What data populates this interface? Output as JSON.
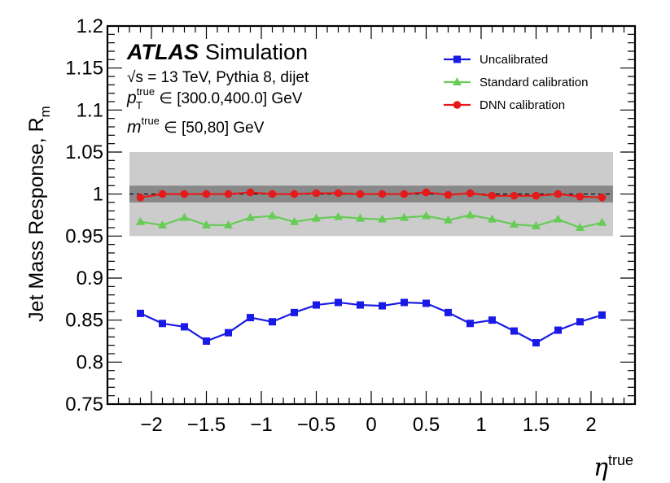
{
  "chart_data": {
    "type": "line",
    "ylabel": "Jet Mass Response, R",
    "ylabel_sub": "m",
    "xlabel": "η",
    "xlabel_sup": "true",
    "xlim": [
      -2.4,
      2.4
    ],
    "ylim": [
      0.75,
      1.2
    ],
    "xticks": [
      -2,
      -1.5,
      -1,
      -0.5,
      0,
      0.5,
      1,
      1.5,
      2
    ],
    "xtick_labels": [
      "−2",
      "−1.5",
      "−1",
      "−0.5",
      "0",
      "0.5",
      "1",
      "1.5",
      "2"
    ],
    "yticks": [
      0.75,
      0.8,
      0.85,
      0.9,
      0.95,
      1,
      1.05,
      1.1,
      1.15,
      1.2
    ],
    "ytick_labels": [
      "0.75",
      "0.8",
      "0.85",
      "0.9",
      "0.95",
      "1",
      "1.05",
      "1.1",
      "1.15",
      "1.2"
    ],
    "reference_line": 1.0,
    "bands": [
      {
        "name": "±5%",
        "low": 0.95,
        "high": 1.05,
        "color": "#cccccc"
      },
      {
        "name": "±1%",
        "low": 0.99,
        "high": 1.01,
        "color": "#888888"
      }
    ],
    "band_x_range": [
      -2.2,
      2.2
    ],
    "x": [
      -2.1,
      -1.9,
      -1.7,
      -1.5,
      -1.3,
      -1.1,
      -0.9,
      -0.7,
      -0.5,
      -0.3,
      -0.1,
      0.1,
      0.3,
      0.5,
      0.7,
      0.9,
      1.1,
      1.3,
      1.5,
      1.7,
      1.9,
      2.1
    ],
    "series": [
      {
        "name": "Uncalibrated",
        "marker": "square",
        "color": "#1a1ae6",
        "values": [
          0.858,
          0.846,
          0.842,
          0.825,
          0.835,
          0.853,
          0.848,
          0.859,
          0.868,
          0.871,
          0.868,
          0.867,
          0.871,
          0.87,
          0.859,
          0.846,
          0.85,
          0.837,
          0.823,
          0.838,
          0.848,
          0.856
        ]
      },
      {
        "name": "Standard calibration",
        "marker": "triangle",
        "color": "#66cc55",
        "values": [
          0.967,
          0.963,
          0.972,
          0.963,
          0.963,
          0.972,
          0.974,
          0.967,
          0.971,
          0.973,
          0.971,
          0.97,
          0.972,
          0.974,
          0.969,
          0.975,
          0.97,
          0.964,
          0.962,
          0.97,
          0.96,
          0.966
        ]
      },
      {
        "name": "DNN calibration",
        "marker": "circle",
        "color": "#e61a1a",
        "values": [
          0.996,
          1.0,
          1.0,
          1.0,
          1.0,
          1.002,
          1.0,
          1.0,
          1.001,
          1.001,
          1.0,
          1.0,
          1.0,
          1.002,
          0.999,
          1.001,
          0.998,
          0.998,
          0.998,
          1.0,
          0.997,
          0.996
        ]
      }
    ],
    "annotations": {
      "experiment": "ATLAS",
      "experiment_suffix": "Simulation",
      "energy_sqrt": "√s",
      "energy_rest": " = 13 TeV, Pythia 8, dijet",
      "pt_symbol": "p",
      "pt_sub": "T",
      "pt_sup": "true",
      "pt_range": " ∈ [300.0,400.0] GeV",
      "m_symbol": "m",
      "m_sup": "true",
      "m_range": " ∈ [50,80] GeV"
    },
    "legend_position": "top-right"
  }
}
